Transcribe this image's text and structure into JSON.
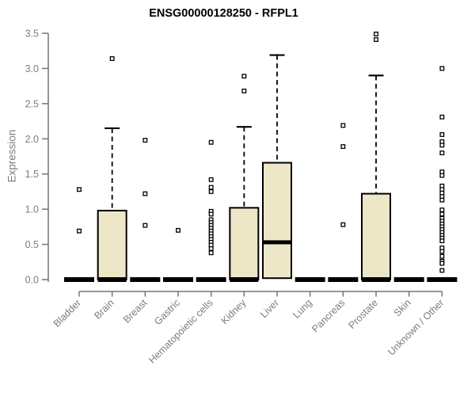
{
  "chart_data": {
    "type": "boxplot",
    "title": "ENSG00000128250 - RFPL1",
    "xlabel": "",
    "ylabel": "Expression",
    "ylim": [
      0,
      3.5
    ],
    "yticks": [
      "0.0",
      "0.5",
      "1.0",
      "1.5",
      "2.0",
      "2.5",
      "3.0",
      "3.5"
    ],
    "grid": "off",
    "legend": "none",
    "categories": [
      "Bladder",
      "Brain",
      "Breast",
      "Gastric",
      "Hematopoietic cells",
      "Kidney",
      "Liver",
      "Lung",
      "Pancreas",
      "Prostate",
      "Skin",
      "Unknown / Other"
    ],
    "boxes": [
      {
        "category": "Bladder",
        "q1": 0,
        "median": 0,
        "q3": 0,
        "whisker_low": 0,
        "whisker_high": 0,
        "outliers": [
          1.28,
          0.69
        ]
      },
      {
        "category": "Brain",
        "q1": 0,
        "median": 0,
        "q3": 0.98,
        "whisker_low": 0,
        "whisker_high": 2.15,
        "outliers": [
          3.14
        ]
      },
      {
        "category": "Breast",
        "q1": 0,
        "median": 0,
        "q3": 0,
        "whisker_low": 0,
        "whisker_high": 0,
        "outliers": [
          1.98,
          1.22,
          0.77
        ]
      },
      {
        "category": "Gastric",
        "q1": 0,
        "median": 0,
        "q3": 0,
        "whisker_low": 0,
        "whisker_high": 0,
        "outliers": [
          0.7
        ]
      },
      {
        "category": "Hematopoietic cells",
        "q1": 0,
        "median": 0,
        "q3": 0,
        "whisker_low": 0,
        "whisker_high": 0,
        "outliers": [
          1.95,
          1.42,
          1.31,
          1.25,
          0.97,
          0.93,
          0.85,
          0.81,
          0.77,
          0.73,
          0.69,
          0.65,
          0.61,
          0.57,
          0.53,
          0.49,
          0.44,
          0.38
        ]
      },
      {
        "category": "Kidney",
        "q1": 0,
        "median": 0,
        "q3": 1.02,
        "whisker_low": 0,
        "whisker_high": 2.17,
        "outliers": [
          2.89,
          2.68
        ]
      },
      {
        "category": "Liver",
        "q1": 0.02,
        "median": 0.53,
        "q3": 1.66,
        "whisker_low": 0.02,
        "whisker_high": 3.19,
        "outliers": []
      },
      {
        "category": "Lung",
        "q1": 0,
        "median": 0,
        "q3": 0,
        "whisker_low": 0,
        "whisker_high": 0,
        "outliers": []
      },
      {
        "category": "Pancreas",
        "q1": 0,
        "median": 0,
        "q3": 0,
        "whisker_low": 0,
        "whisker_high": 0,
        "outliers": [
          2.19,
          1.89,
          0.78
        ]
      },
      {
        "category": "Prostate",
        "q1": 0,
        "median": 0,
        "q3": 1.22,
        "whisker_low": 0,
        "whisker_high": 2.9,
        "outliers": [
          3.49,
          3.41
        ]
      },
      {
        "category": "Skin",
        "q1": 0,
        "median": 0,
        "q3": 0,
        "whisker_low": 0,
        "whisker_high": 0,
        "outliers": []
      },
      {
        "category": "Unknown / Other",
        "q1": 0,
        "median": 0,
        "q3": 0,
        "whisker_low": 0,
        "whisker_high": 0,
        "outliers": [
          3.0,
          2.31,
          2.06,
          1.96,
          1.91,
          1.8,
          1.53,
          1.48,
          1.33,
          1.28,
          1.23,
          1.18,
          1.13,
          0.99,
          0.93,
          0.87,
          0.83,
          0.79,
          0.75,
          0.71,
          0.67,
          0.63,
          0.59,
          0.55,
          0.45,
          0.4,
          0.33,
          0.26,
          0.23,
          0.13
        ]
      }
    ],
    "colors": {
      "box_fill": "#ede7c8",
      "box_border": "#000000",
      "median": "#000000",
      "whisker": "#000000",
      "outlier_fill": "#ffffff",
      "outlier_border": "#000000",
      "axis": "#757575",
      "tick_text": "#7d7d7d",
      "title_text": "#000000",
      "background": "#ffffff"
    }
  }
}
